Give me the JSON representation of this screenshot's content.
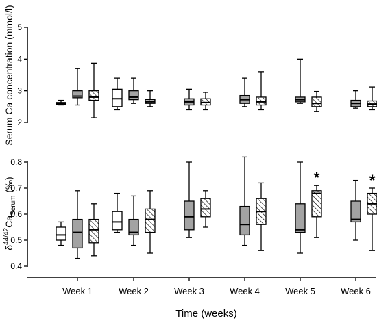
{
  "chart_data": [
    {
      "type": "box",
      "panel": "top",
      "ylabel": "Serum Ca concentration (mmol/l)",
      "ylim": [
        2,
        5
      ],
      "yticks": [
        2,
        3,
        4,
        5
      ],
      "categories": [
        "Week 1",
        "Week 2",
        "Week 3",
        "Week 4",
        "Week 5",
        "Week 6"
      ],
      "boxes": [
        {
          "category": "Week 1",
          "style": "white",
          "min": 2.55,
          "q1": 2.57,
          "median": 2.6,
          "q3": 2.63,
          "max": 2.7
        },
        {
          "category": "Week 1",
          "style": "gray",
          "min": 2.55,
          "q1": 2.78,
          "median": 2.83,
          "q3": 3.0,
          "max": 3.7
        },
        {
          "category": "Week 1",
          "style": "hatched",
          "min": 2.15,
          "q1": 2.7,
          "median": 2.8,
          "q3": 3.0,
          "max": 3.87
        },
        {
          "category": "Week 2",
          "style": "white",
          "min": 2.4,
          "q1": 2.5,
          "median": 2.75,
          "q3": 3.05,
          "max": 3.4
        },
        {
          "category": "Week 2",
          "style": "gray",
          "min": 2.6,
          "q1": 2.72,
          "median": 2.8,
          "q3": 3.0,
          "max": 3.4
        },
        {
          "category": "Week 2",
          "style": "hatched",
          "min": 2.5,
          "q1": 2.6,
          "median": 2.65,
          "q3": 2.72,
          "max": 3.0
        },
        {
          "category": "Week 3",
          "style": "gray",
          "min": 2.4,
          "q1": 2.55,
          "median": 2.65,
          "q3": 2.75,
          "max": 3.05
        },
        {
          "category": "Week 3",
          "style": "hatched",
          "min": 2.4,
          "q1": 2.55,
          "median": 2.63,
          "q3": 2.75,
          "max": 2.95
        },
        {
          "category": "Week 4",
          "style": "gray",
          "min": 2.5,
          "q1": 2.6,
          "median": 2.72,
          "q3": 2.85,
          "max": 3.4
        },
        {
          "category": "Week 4",
          "style": "hatched",
          "min": 2.4,
          "q1": 2.55,
          "median": 2.65,
          "q3": 2.8,
          "max": 3.6
        },
        {
          "category": "Week 5",
          "style": "gray",
          "min": 2.6,
          "q1": 2.65,
          "median": 2.72,
          "q3": 2.8,
          "max": 4.0
        },
        {
          "category": "Week 5",
          "style": "hatched",
          "min": 2.35,
          "q1": 2.5,
          "median": 2.6,
          "q3": 2.8,
          "max": 2.98
        },
        {
          "category": "Week 6",
          "style": "gray",
          "min": 2.45,
          "q1": 2.5,
          "median": 2.6,
          "q3": 2.7,
          "max": 3.0
        },
        {
          "category": "Week 6",
          "style": "hatched",
          "min": 2.4,
          "q1": 2.5,
          "median": 2.58,
          "q3": 2.68,
          "max": 3.12
        }
      ]
    },
    {
      "type": "box",
      "panel": "bottom",
      "ylabel": {
        "prefix": "δ",
        "sup": "44/42",
        "mid": "Ca",
        "sub": "Serum",
        "suffix": " (‰)"
      },
      "xlabel": "Time (weeks)",
      "ylim": [
        0.4,
        0.8
      ],
      "yticks": [
        "0.4",
        "0.5",
        "0.6",
        "0.7",
        "0.8"
      ],
      "categories": [
        "Week 1",
        "Week 2",
        "Week 3",
        "Week 4",
        "Week 5",
        "Week 6"
      ],
      "significance_marker": "*",
      "boxes": [
        {
          "category": "Week 1",
          "style": "white",
          "min": 0.48,
          "q1": 0.5,
          "median": 0.52,
          "q3": 0.55,
          "max": 0.57
        },
        {
          "category": "Week 1",
          "style": "gray",
          "min": 0.43,
          "q1": 0.47,
          "median": 0.53,
          "q3": 0.58,
          "max": 0.69
        },
        {
          "category": "Week 1",
          "style": "hatched",
          "min": 0.44,
          "q1": 0.49,
          "median": 0.54,
          "q3": 0.58,
          "max": 0.64
        },
        {
          "category": "Week 2",
          "style": "white",
          "min": 0.53,
          "q1": 0.54,
          "median": 0.57,
          "q3": 0.61,
          "max": 0.68
        },
        {
          "category": "Week 2",
          "style": "gray",
          "min": 0.48,
          "q1": 0.52,
          "median": 0.53,
          "q3": 0.58,
          "max": 0.67
        },
        {
          "category": "Week 2",
          "style": "hatched",
          "min": 0.45,
          "q1": 0.53,
          "median": 0.58,
          "q3": 0.62,
          "max": 0.69
        },
        {
          "category": "Week 3",
          "style": "gray",
          "min": 0.51,
          "q1": 0.54,
          "median": 0.59,
          "q3": 0.65,
          "max": 0.8
        },
        {
          "category": "Week 3",
          "style": "hatched",
          "min": 0.55,
          "q1": 0.59,
          "median": 0.62,
          "q3": 0.66,
          "max": 0.69
        },
        {
          "category": "Week 4",
          "style": "gray",
          "min": 0.48,
          "q1": 0.52,
          "median": 0.56,
          "q3": 0.63,
          "max": 0.82
        },
        {
          "category": "Week 4",
          "style": "hatched",
          "min": 0.46,
          "q1": 0.56,
          "median": 0.61,
          "q3": 0.66,
          "max": 0.72
        },
        {
          "category": "Week 5",
          "style": "gray",
          "min": 0.45,
          "q1": 0.53,
          "median": 0.54,
          "q3": 0.64,
          "max": 0.8
        },
        {
          "category": "Week 5",
          "style": "hatched",
          "min": 0.51,
          "q1": 0.59,
          "median": 0.68,
          "q3": 0.69,
          "max": 0.71,
          "significant": true
        },
        {
          "category": "Week 6",
          "style": "gray",
          "min": 0.5,
          "q1": 0.57,
          "median": 0.58,
          "q3": 0.65,
          "max": 0.73
        },
        {
          "category": "Week 6",
          "style": "hatched",
          "min": 0.46,
          "q1": 0.6,
          "median": 0.64,
          "q3": 0.68,
          "max": 0.7,
          "significant": true
        }
      ]
    }
  ],
  "colors": {
    "white": "#ffffff",
    "gray": "#a3a3a3",
    "hatched": "#ffffff",
    "stroke": "#000000"
  }
}
